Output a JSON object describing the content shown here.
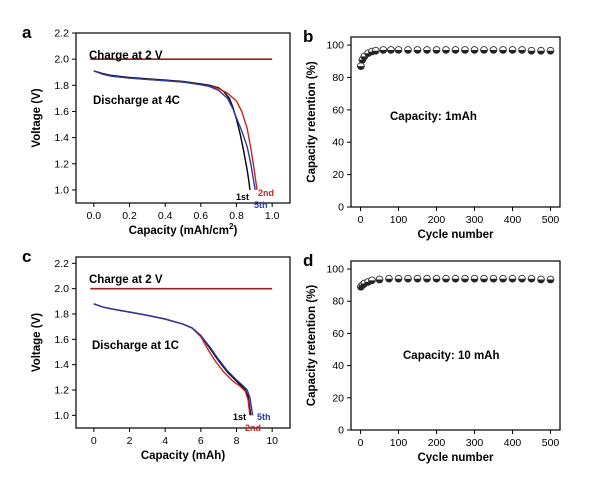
{
  "chart_data": [
    {
      "panel": "a",
      "type": "line",
      "xlabel": "Capacity (mAh/cm",
      "xlabel_sup": "2",
      "xlabel_end": ")",
      "ylabel": "Voltage (V)",
      "xlim": [
        -0.1,
        1.1
      ],
      "ylim": [
        0.9,
        2.2
      ],
      "xticks": [
        0.0,
        0.2,
        0.4,
        0.6,
        0.8,
        1.0
      ],
      "xtick_labels": [
        "0.0",
        "0.2",
        "0.4",
        "0.6",
        "0.8",
        "1.0"
      ],
      "yticks": [
        1.0,
        1.2,
        1.4,
        1.6,
        1.8,
        2.0,
        2.2
      ],
      "ytick_labels": [
        "1.0",
        "1.2",
        "1.4",
        "1.6",
        "1.8",
        "2.0",
        "2.2"
      ],
      "annotations": [
        {
          "text": "Charge at 2 V",
          "role": "charge"
        },
        {
          "text": "Discharge at 4C",
          "role": "discharge"
        }
      ],
      "charge_line": {
        "value": 2.0,
        "x": [
          -0.02,
          1.0
        ],
        "color": "#a01c20"
      },
      "series": [
        {
          "name": "1st",
          "color": "#000000",
          "x": [
            0.0,
            0.05,
            0.1,
            0.2,
            0.3,
            0.4,
            0.5,
            0.55,
            0.6,
            0.65,
            0.7,
            0.73,
            0.76,
            0.78,
            0.8,
            0.82,
            0.84,
            0.86,
            0.87,
            0.875
          ],
          "y": [
            1.91,
            1.89,
            1.875,
            1.86,
            1.85,
            1.84,
            1.83,
            1.82,
            1.81,
            1.8,
            1.78,
            1.75,
            1.7,
            1.63,
            1.54,
            1.43,
            1.3,
            1.15,
            1.06,
            1.0
          ]
        },
        {
          "name": "2nd",
          "color": "#cc2222",
          "x": [
            0.0,
            0.05,
            0.1,
            0.2,
            0.3,
            0.4,
            0.5,
            0.55,
            0.6,
            0.65,
            0.7,
            0.75,
            0.8,
            0.83,
            0.86,
            0.88,
            0.9,
            0.91,
            0.915
          ],
          "y": [
            1.91,
            1.885,
            1.87,
            1.855,
            1.845,
            1.835,
            1.825,
            1.815,
            1.805,
            1.795,
            1.775,
            1.74,
            1.68,
            1.6,
            1.47,
            1.32,
            1.15,
            1.05,
            1.0
          ]
        },
        {
          "name": "5th",
          "color": "#2a3aa8",
          "x": [
            0.0,
            0.05,
            0.1,
            0.2,
            0.3,
            0.4,
            0.5,
            0.55,
            0.6,
            0.65,
            0.7,
            0.75,
            0.78,
            0.8,
            0.83,
            0.86,
            0.88,
            0.895,
            0.905
          ],
          "y": [
            1.91,
            1.885,
            1.87,
            1.855,
            1.845,
            1.835,
            1.825,
            1.815,
            1.805,
            1.79,
            1.76,
            1.7,
            1.62,
            1.55,
            1.45,
            1.33,
            1.2,
            1.08,
            1.0
          ]
        }
      ],
      "cycle_labels": [
        {
          "text": "1st",
          "color": "#000000"
        },
        {
          "text": "2nd",
          "color": "#cc2222"
        },
        {
          "text": "5th",
          "color": "#2a3aa8"
        }
      ]
    },
    {
      "panel": "b",
      "type": "scatter",
      "xlabel": "Cycle number",
      "ylabel": "Capacity retention (%)",
      "xlim": [
        -25,
        525
      ],
      "ylim": [
        0,
        105
      ],
      "xticks": [
        0,
        100,
        200,
        300,
        400,
        500
      ],
      "xtick_labels": [
        "0",
        "100",
        "200",
        "300",
        "400",
        "500"
      ],
      "yticks": [
        0,
        20,
        40,
        60,
        80,
        100
      ],
      "ytick_labels": [
        "0",
        "20",
        "40",
        "60",
        "80",
        "100"
      ],
      "annotations": [
        {
          "text": "Capacity: 1mAh",
          "role": "capacity"
        }
      ],
      "series": [
        {
          "marker": "half-filled-circle",
          "x": [
            1,
            5,
            10,
            20,
            30,
            40,
            60,
            80,
            100,
            125,
            150,
            175,
            200,
            225,
            250,
            275,
            300,
            325,
            350,
            375,
            400,
            425,
            450,
            475,
            500
          ],
          "y": [
            87,
            91,
            93,
            95,
            96,
            96.5,
            97,
            97,
            97,
            97,
            97,
            97,
            97,
            97,
            97,
            97,
            97,
            97,
            97,
            97,
            97,
            97,
            96.5,
            96.5,
            96.5
          ]
        }
      ]
    },
    {
      "panel": "c",
      "type": "line",
      "xlabel": "Capacity (mAh)",
      "ylabel": "Voltage (V)",
      "xlim": [
        -1,
        11
      ],
      "ylim": [
        0.9,
        2.25
      ],
      "xticks": [
        0,
        2,
        4,
        6,
        8,
        10
      ],
      "xtick_labels": [
        "0",
        "2",
        "4",
        "6",
        "8",
        "10"
      ],
      "yticks": [
        1.0,
        1.2,
        1.4,
        1.6,
        1.8,
        2.0,
        2.2
      ],
      "ytick_labels": [
        "1.0",
        "1.2",
        "1.4",
        "1.6",
        "1.8",
        "2.0",
        "2.2"
      ],
      "annotations": [
        {
          "text": "Charge at 2 V",
          "role": "charge"
        },
        {
          "text": "Discharge at 1C",
          "role": "discharge"
        }
      ],
      "charge_line": {
        "value": 2.0,
        "x": [
          -0.2,
          10.0
        ],
        "color": "#a01c20"
      },
      "series": [
        {
          "name": "1st",
          "color": "#000000",
          "x": [
            0,
            0.5,
            1,
            2,
            3,
            4,
            5,
            5.5,
            6,
            6.5,
            7,
            7.5,
            8,
            8.3,
            8.5,
            8.65,
            8.75,
            8.8
          ],
          "y": [
            1.88,
            1.855,
            1.84,
            1.815,
            1.79,
            1.76,
            1.72,
            1.69,
            1.63,
            1.53,
            1.43,
            1.34,
            1.27,
            1.23,
            1.2,
            1.15,
            1.05,
            1.0
          ]
        },
        {
          "name": "2nd",
          "color": "#cc2222",
          "x": [
            0,
            0.5,
            1,
            2,
            3,
            4,
            5,
            5.5,
            6,
            6.4,
            6.8,
            7.3,
            7.8,
            8.2,
            8.5,
            8.65,
            8.72,
            8.75
          ],
          "y": [
            1.88,
            1.855,
            1.84,
            1.815,
            1.79,
            1.76,
            1.72,
            1.69,
            1.62,
            1.52,
            1.43,
            1.34,
            1.27,
            1.23,
            1.19,
            1.12,
            1.04,
            1.0
          ]
        },
        {
          "name": "5th",
          "color": "#2a3aa8",
          "x": [
            0,
            0.5,
            1,
            2,
            3,
            4,
            5,
            5.5,
            6,
            6.5,
            7,
            7.5,
            8,
            8.4,
            8.6,
            8.75,
            8.85,
            8.9
          ],
          "y": [
            1.88,
            1.855,
            1.84,
            1.815,
            1.79,
            1.76,
            1.72,
            1.69,
            1.63,
            1.54,
            1.44,
            1.35,
            1.28,
            1.23,
            1.2,
            1.14,
            1.05,
            1.0
          ]
        }
      ],
      "cycle_labels": [
        {
          "text": "1st",
          "color": "#000000"
        },
        {
          "text": "5th",
          "color": "#2a3aa8"
        },
        {
          "text": "2nd",
          "color": "#cc2222"
        }
      ]
    },
    {
      "panel": "d",
      "type": "scatter",
      "xlabel": "Cycle number",
      "ylabel": "Capacity retention (%)",
      "xlim": [
        -25,
        525
      ],
      "ylim": [
        0,
        105
      ],
      "xticks": [
        0,
        100,
        200,
        300,
        400,
        500
      ],
      "xtick_labels": [
        "0",
        "100",
        "200",
        "300",
        "400",
        "500"
      ],
      "yticks": [
        0,
        20,
        40,
        60,
        80,
        100
      ],
      "ytick_labels": [
        "0",
        "20",
        "40",
        "60",
        "80",
        "100"
      ],
      "annotations": [
        {
          "text": "Capacity: 10 mAh",
          "role": "capacity"
        }
      ],
      "series": [
        {
          "marker": "half-filled-circle",
          "x": [
            1,
            5,
            10,
            20,
            30,
            50,
            75,
            100,
            125,
            150,
            175,
            200,
            225,
            250,
            275,
            300,
            325,
            350,
            375,
            400,
            425,
            450,
            475,
            500
          ],
          "y": [
            89,
            90,
            91,
            92,
            93,
            93.5,
            94,
            94,
            94,
            94,
            94,
            94,
            94,
            94,
            94,
            94,
            94,
            94,
            94,
            94,
            94,
            94,
            93.5,
            93.5
          ]
        }
      ]
    }
  ]
}
